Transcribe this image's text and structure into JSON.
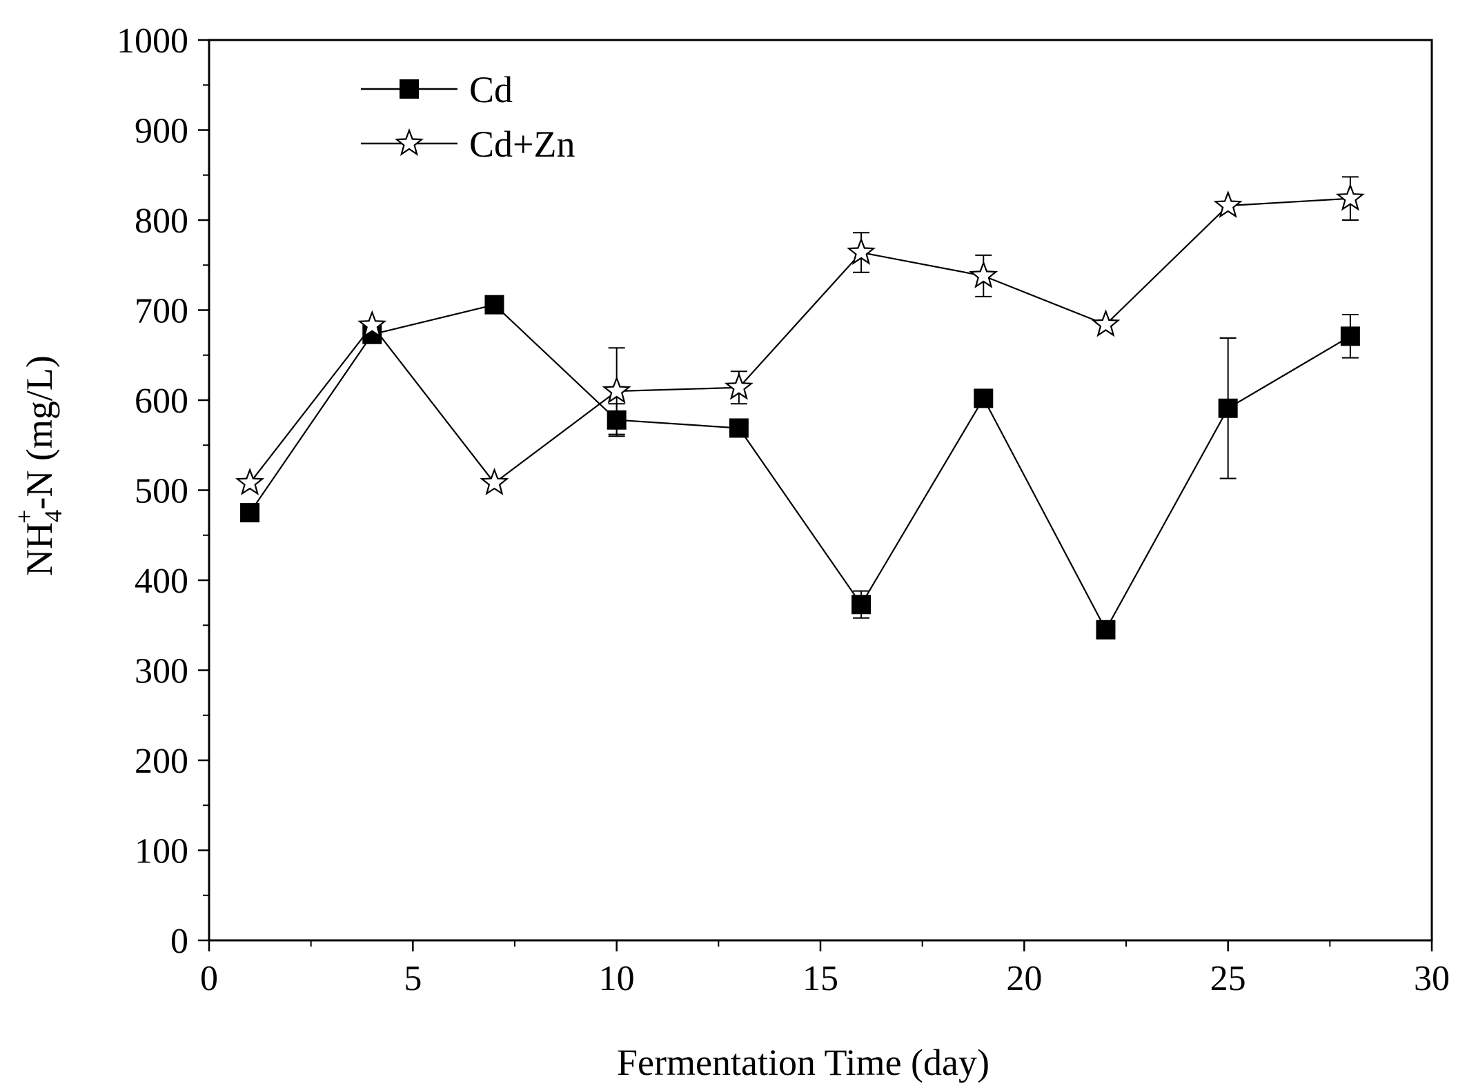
{
  "chart_data": {
    "type": "line",
    "title": "",
    "xlabel": "Fermentation Time (day)",
    "ylabel": {
      "base": "NH",
      "sub": "4",
      "sup": "+",
      "rest": "-N (mg/L)"
    },
    "xlim": [
      0,
      30
    ],
    "ylim": [
      0,
      1000
    ],
    "x_ticks": [
      0,
      5,
      10,
      15,
      20,
      25,
      30
    ],
    "y_ticks": [
      0,
      100,
      200,
      300,
      400,
      500,
      600,
      700,
      800,
      900,
      1000
    ],
    "x_tick_labels": [
      "0",
      "5",
      "10",
      "15",
      "20",
      "25",
      "30"
    ],
    "y_tick_labels": [
      "0",
      "100",
      "200",
      "300",
      "400",
      "500",
      "600",
      "700",
      "800",
      "900",
      "1000"
    ],
    "grid": false,
    "legend_position": "top-left",
    "series": [
      {
        "name": "Cd",
        "marker": "filled-square",
        "x": [
          1,
          4,
          7,
          10,
          13,
          16,
          19,
          22,
          25,
          28
        ],
        "y": [
          475,
          673,
          706,
          578,
          569,
          373,
          602,
          345,
          591,
          671
        ],
        "error": [
          0,
          0,
          0,
          18,
          0,
          15,
          0,
          0,
          78,
          24
        ]
      },
      {
        "name": "Cd+Zn",
        "marker": "hollow-star",
        "x": [
          1,
          4,
          7,
          10,
          13,
          16,
          19,
          22,
          25,
          28
        ],
        "y": [
          508,
          683,
          508,
          610,
          614,
          764,
          738,
          684,
          816,
          824
        ],
        "error": [
          0,
          0,
          0,
          48,
          18,
          22,
          23,
          0,
          0,
          24
        ]
      }
    ]
  }
}
